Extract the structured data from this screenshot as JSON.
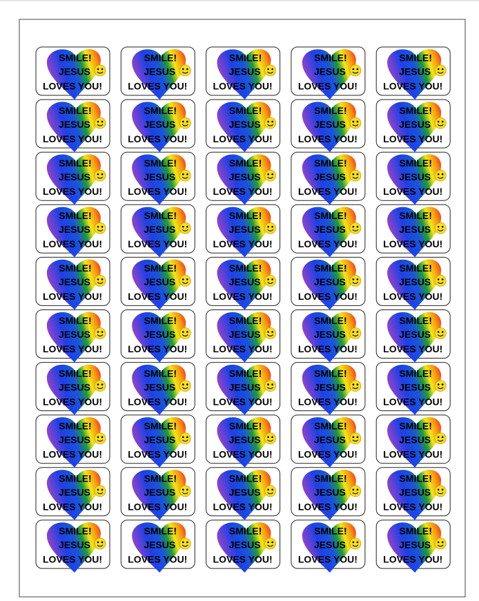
{
  "sheet": {
    "stickers": [
      {
        "lines": [
          "SMILE!",
          "JESUS",
          "LOVES YOU!"
        ]
      },
      {
        "lines": [
          "SMILE!",
          "JESUS",
          "LOVES YOU!"
        ]
      },
      {
        "lines": [
          "SMILE!",
          "JESUS",
          "LOVES YOU!"
        ]
      },
      {
        "lines": [
          "SMILE!",
          "JESUS",
          "LOVES YOU!"
        ]
      },
      {
        "lines": [
          "SMILE!",
          "JESUS",
          "LOVES YOU!"
        ]
      },
      {
        "lines": [
          "SMILE!",
          "JESUS",
          "LOVES YOU!"
        ]
      },
      {
        "lines": [
          "SMILE!",
          "JESUS",
          "LOVES YOU!"
        ]
      },
      {
        "lines": [
          "SMILE!",
          "JESUS",
          "LOVES YOU!"
        ]
      },
      {
        "lines": [
          "SMILE!",
          "JESUS",
          "LOVES YOU!"
        ]
      },
      {
        "lines": [
          "SMILE!",
          "JESUS",
          "LOVES YOU!"
        ]
      },
      {
        "lines": [
          "SMILE!",
          "JESUS",
          "LOVES YOU!"
        ]
      },
      {
        "lines": [
          "SMILE!",
          "JESUS",
          "LOVES YOU!"
        ]
      },
      {
        "lines": [
          "SMILE!",
          "JESUS",
          "LOVES YOU!"
        ]
      },
      {
        "lines": [
          "SMILE!",
          "JESUS",
          "LOVES YOU!"
        ]
      },
      {
        "lines": [
          "SMILE!",
          "JESUS",
          "LOVES YOU!"
        ]
      },
      {
        "lines": [
          "SMILE!",
          "JESUS",
          "LOVES YOU!"
        ]
      },
      {
        "lines": [
          "SMILE!",
          "JESUS",
          "LOVES YOU!"
        ]
      },
      {
        "lines": [
          "SMILE!",
          "JESUS",
          "LOVES YOU!"
        ]
      },
      {
        "lines": [
          "SMILE!",
          "JESUS",
          "LOVES YOU!"
        ]
      },
      {
        "lines": [
          "SMILE!",
          "JESUS",
          "LOVES YOU!"
        ]
      },
      {
        "lines": [
          "SMILE!",
          "JESUS",
          "LOVES YOU!"
        ]
      },
      {
        "lines": [
          "SMILE!",
          "JESUS",
          "LOVES YOU!"
        ]
      },
      {
        "lines": [
          "SMILE!",
          "JESUS",
          "LOVES YOU!"
        ]
      },
      {
        "lines": [
          "SMILE!",
          "JESUS",
          "LOVES YOU!"
        ]
      },
      {
        "lines": [
          "SMILE!",
          "JESUS",
          "LOVES YOU!"
        ]
      },
      {
        "lines": [
          "SMILE!",
          "JESUS",
          "LOVES YOU!"
        ]
      },
      {
        "lines": [
          "SMILE!",
          "JESUS",
          "LOVES YOU!"
        ]
      },
      {
        "lines": [
          "SMILE!",
          "JESUS",
          "LOVES YOU!"
        ]
      },
      {
        "lines": [
          "SMILE!",
          "JESUS",
          "LOVES YOU!"
        ]
      },
      {
        "lines": [
          "SMILE!",
          "JESUS",
          "LOVES YOU!"
        ]
      },
      {
        "lines": [
          "SMILE!",
          "JESUS",
          "LOVES YOU!"
        ]
      },
      {
        "lines": [
          "SMILE!",
          "JESUS",
          "LOVES YOU!"
        ]
      },
      {
        "lines": [
          "SMILE!",
          "JESUS",
          "LOVES YOU!"
        ]
      },
      {
        "lines": [
          "SMILE!",
          "JESUS",
          "LOVES YOU!"
        ]
      },
      {
        "lines": [
          "SMILE!",
          "JESUS",
          "LOVES YOU!"
        ]
      },
      {
        "lines": [
          "SMILE!",
          "JESUS",
          "LOVES YOU!"
        ]
      },
      {
        "lines": [
          "SMILE!",
          "JESUS",
          "LOVES YOU!"
        ]
      },
      {
        "lines": [
          "SMILE!",
          "JESUS",
          "LOVES YOU!"
        ]
      },
      {
        "lines": [
          "SMILE!",
          "JESUS",
          "LOVES YOU!"
        ]
      },
      {
        "lines": [
          "SMILE!",
          "JESUS",
          "LOVES YOU!"
        ]
      },
      {
        "lines": [
          "SMILE!",
          "JESUS",
          "LOVES YOU!"
        ]
      },
      {
        "lines": [
          "SMILE!",
          "JESUS",
          "LOVES YOU!"
        ]
      },
      {
        "lines": [
          "SMILE!",
          "JESUS",
          "LOVES YOU!"
        ]
      },
      {
        "lines": [
          "SMILE!",
          "JESUS",
          "LOVES YOU!"
        ]
      },
      {
        "lines": [
          "SMILE!",
          "JESUS",
          "LOVES YOU!"
        ]
      },
      {
        "lines": [
          "SMILE!",
          "JESUS",
          "LOVES YOU!"
        ]
      },
      {
        "lines": [
          "SMILE!",
          "JESUS",
          "LOVES YOU!"
        ]
      },
      {
        "lines": [
          "SMILE!",
          "JESUS",
          "LOVES YOU!"
        ]
      },
      {
        "lines": [
          "SMILE!",
          "JESUS",
          "LOVES YOU!"
        ]
      },
      {
        "lines": [
          "SMILE!",
          "JESUS",
          "LOVES YOU!"
        ]
      }
    ]
  }
}
